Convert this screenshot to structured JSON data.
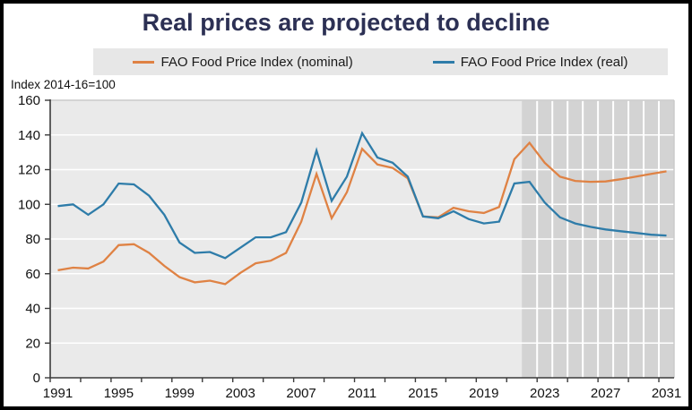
{
  "title": "Real prices are projected to decline",
  "axis_note": "Index 2014-16=100",
  "legend": [
    {
      "label": "FAO Food Price Index (nominal)",
      "color": "#df8244"
    },
    {
      "label": "FAO Food Price Index (real)",
      "color": "#2e7ca9"
    }
  ],
  "chart_data": {
    "type": "line",
    "title": "Real prices are projected to decline",
    "unit_note": "Index 2014-16=100",
    "x": [
      1991,
      1992,
      1993,
      1994,
      1995,
      1996,
      1997,
      1998,
      1999,
      2000,
      2001,
      2002,
      2003,
      2004,
      2005,
      2006,
      2007,
      2008,
      2009,
      2010,
      2011,
      2012,
      2013,
      2014,
      2015,
      2016,
      2017,
      2018,
      2019,
      2020,
      2021,
      2022,
      2023,
      2024,
      2025,
      2026,
      2027,
      2028,
      2029,
      2030,
      2031
    ],
    "series": [
      {
        "name": "FAO Food Price Index (nominal)",
        "color": "#df8244",
        "values": [
          62,
          63.5,
          63,
          67,
          76.5,
          77,
          72,
          64.5,
          58,
          55,
          56,
          54,
          60.5,
          66,
          67.5,
          72,
          90,
          117.5,
          92,
          107,
          132,
          123,
          121,
          115,
          93,
          92.5,
          98,
          96,
          95,
          98.5,
          126,
          135.5,
          124,
          116,
          113.5,
          113,
          113.2,
          114.5,
          116,
          117.5,
          119
        ]
      },
      {
        "name": "FAO Food Price Index (real)",
        "color": "#2e7ca9",
        "values": [
          99,
          100,
          94,
          100,
          112,
          111.5,
          105,
          94,
          78,
          72,
          72.5,
          69,
          75,
          81,
          81,
          84,
          101,
          131,
          102,
          116,
          141,
          127,
          124,
          116,
          93,
          92,
          96,
          91.5,
          89,
          90,
          112,
          113,
          101,
          92.5,
          89,
          87,
          85.5,
          84.5,
          83.5,
          82.5,
          82
        ]
      }
    ],
    "ylim": [
      0,
      160
    ],
    "yticks": [
      0,
      20,
      40,
      60,
      80,
      100,
      120,
      140,
      160
    ],
    "xtick_label_years": [
      1991,
      1995,
      1999,
      2003,
      2007,
      2011,
      2015,
      2019,
      2023,
      2027,
      2031
    ],
    "xtick_minor_step_years": 2,
    "projection_start": 2022,
    "projection_end": 2031,
    "grid": "on",
    "legend_position": "top",
    "colors": {
      "plot_bg": "#eaeaea",
      "projection_bg": "#d3d3d3",
      "gridline": "#ffffff",
      "spine_dark": "#3a3a3a",
      "spine_light": "#c8c8c8",
      "tick_label": "#111111"
    }
  }
}
